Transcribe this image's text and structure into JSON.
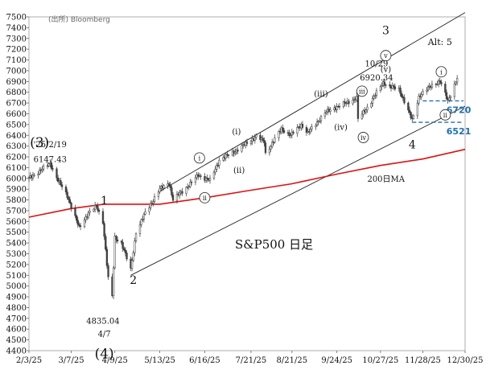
{
  "source": "(出所) Bloomberg",
  "chart_data": {
    "type": "candlestick",
    "title": "S&P500 日足",
    "ylim": [
      4400,
      7500
    ],
    "y_ticks": [
      4400,
      4500,
      4600,
      4700,
      4800,
      4900,
      5000,
      5100,
      5200,
      5300,
      5400,
      5500,
      5600,
      5700,
      5800,
      5900,
      6000,
      6100,
      6200,
      6300,
      6400,
      6500,
      6600,
      6700,
      6800,
      6900,
      7000,
      7100,
      7200,
      7300,
      7400,
      7500
    ],
    "x_ticks": [
      "2/3/25",
      "3/7/25",
      "4/9/25",
      "5/13/25",
      "6/16/25",
      "7/21/25",
      "8/21/25",
      "9/24/25",
      "10/27/25",
      "11/28/25",
      "12/30/25"
    ],
    "x_tick_dates": [
      "2025-02-03",
      "2025-03-07",
      "2025-04-09",
      "2025-05-13",
      "2025-06-16",
      "2025-07-21",
      "2025-08-21",
      "2025-09-24",
      "2025-10-27",
      "2025-11-28",
      "2025-12-30"
    ],
    "price_anchors": [
      [
        "2025-02-03",
        6000
      ],
      [
        "2025-02-10",
        6060
      ],
      [
        "2025-02-19",
        6140
      ],
      [
        "2025-02-25",
        5980
      ],
      [
        "2025-03-04",
        5840
      ],
      [
        "2025-03-10",
        5640
      ],
      [
        "2025-03-13",
        5540
      ],
      [
        "2025-03-20",
        5680
      ],
      [
        "2025-03-26",
        5740
      ],
      [
        "2025-03-31",
        5600
      ],
      [
        "2025-04-04",
        5070
      ],
      [
        "2025-04-07",
        4900
      ],
      [
        "2025-04-09",
        5450
      ],
      [
        "2025-04-14",
        5400
      ],
      [
        "2025-04-21",
        5150
      ],
      [
        "2025-04-25",
        5500
      ],
      [
        "2025-05-02",
        5680
      ],
      [
        "2025-05-13",
        5900
      ],
      [
        "2025-05-20",
        5960
      ],
      [
        "2025-05-23",
        5800
      ],
      [
        "2025-06-05",
        5950
      ],
      [
        "2025-06-11",
        6030
      ],
      [
        "2025-06-20",
        5980
      ],
      [
        "2025-06-27",
        6170
      ],
      [
        "2025-07-10",
        6260
      ],
      [
        "2025-07-25",
        6390
      ],
      [
        "2025-07-31",
        6340
      ],
      [
        "2025-08-01",
        6230
      ],
      [
        "2025-08-13",
        6460
      ],
      [
        "2025-08-20",
        6400
      ],
      [
        "2025-08-28",
        6500
      ],
      [
        "2025-09-02",
        6420
      ],
      [
        "2025-09-15",
        6610
      ],
      [
        "2025-09-23",
        6660
      ],
      [
        "2025-10-01",
        6700
      ],
      [
        "2025-10-09",
        6750
      ],
      [
        "2025-10-10",
        6550
      ],
      [
        "2025-10-17",
        6660
      ],
      [
        "2025-10-29",
        6890
      ],
      [
        "2025-11-03",
        6850
      ],
      [
        "2025-11-10",
        6830
      ],
      [
        "2025-11-20",
        6540
      ],
      [
        "2025-11-25",
        6760
      ],
      [
        "2025-12-05",
        6870
      ],
      [
        "2025-12-11",
        6900
      ],
      [
        "2025-12-17",
        6720
      ],
      [
        "2025-12-24",
        6930
      ]
    ],
    "ma_label": "200日MA",
    "ma_anchors": [
      [
        "2025-02-03",
        5640
      ],
      [
        "2025-03-07",
        5720
      ],
      [
        "2025-04-01",
        5760
      ],
      [
        "2025-04-09",
        5760
      ],
      [
        "2025-05-13",
        5760
      ],
      [
        "2025-06-16",
        5820
      ],
      [
        "2025-07-21",
        5890
      ],
      [
        "2025-08-21",
        5950
      ],
      [
        "2025-09-24",
        6040
      ],
      [
        "2025-10-27",
        6120
      ],
      [
        "2025-11-28",
        6180
      ],
      [
        "2025-12-30",
        6270
      ]
    ],
    "channel_upper": [
      [
        "2025-05-13",
        5880
      ],
      [
        "2025-12-30",
        7540
      ]
    ],
    "channel_lower": [
      [
        "2025-04-21",
        5100
      ],
      [
        "2025-12-30",
        6670
      ]
    ],
    "level_lines": [
      {
        "value": 6720,
        "label": "6720",
        "from": "2025-11-28",
        "to": "2025-12-30",
        "color": "#1f6fb4"
      },
      {
        "value": 6521,
        "label": "6521",
        "from": "2025-11-20",
        "to": "2025-12-30",
        "color": "#1f6fb4"
      }
    ],
    "annotations": [
      {
        "text": "(3)",
        "date": "2025-02-11",
        "y": 6290,
        "size": 17
      },
      {
        "text": "'25/2/19",
        "date": "2025-02-19",
        "y": 6290,
        "size": 10
      },
      {
        "text": "6147.43",
        "date": "2025-02-19",
        "y": 6150,
        "size": 10
      },
      {
        "text": "1",
        "date": "2025-04-01",
        "y": 5760,
        "size": 14
      },
      {
        "text": "2",
        "date": "2025-04-23",
        "y": 5020,
        "size": 14
      },
      {
        "text": "4835.04",
        "date": "2025-03-31",
        "y": 4650,
        "size": 10
      },
      {
        "text": "4/7",
        "date": "2025-04-01",
        "y": 4530,
        "size": 10
      },
      {
        "text": "(4)",
        "date": "2025-04-01",
        "y": 4330,
        "size": 17
      },
      {
        "text": "(i)",
        "date": "2025-07-10",
        "y": 6410,
        "size": 10
      },
      {
        "text": "(ii)",
        "date": "2025-07-12",
        "y": 6050,
        "size": 10
      },
      {
        "text": "(iii)",
        "date": "2025-09-12",
        "y": 6760,
        "size": 10
      },
      {
        "text": "(iv)",
        "date": "2025-09-27",
        "y": 6450,
        "size": 10
      },
      {
        "text": "3",
        "date": "2025-10-31",
        "y": 7340,
        "size": 14
      },
      {
        "text": "10/29",
        "date": "2025-10-24",
        "y": 7040,
        "size": 10
      },
      {
        "text": "6920.34",
        "date": "2025-10-24",
        "y": 6910,
        "size": 10
      },
      {
        "text": "(v)",
        "date": "2025-10-31",
        "y": 6990,
        "size": 10
      },
      {
        "text": "4",
        "date": "2025-11-20",
        "y": 6280,
        "size": 14
      },
      {
        "text": "Alt: 5",
        "date": "2025-12-11",
        "y": 7240,
        "size": 11
      }
    ],
    "circle_labels": [
      {
        "text": "i",
        "date": "2025-06-12",
        "y": 6190
      },
      {
        "text": "ii",
        "date": "2025-06-16",
        "y": 5820
      },
      {
        "text": "iii",
        "date": "2025-10-13",
        "y": 6810
      },
      {
        "text": "iv",
        "date": "2025-10-14",
        "y": 6380
      },
      {
        "text": "v",
        "date": "2025-10-31",
        "y": 7140
      },
      {
        "text": "i",
        "date": "2025-12-12",
        "y": 6990
      },
      {
        "text": "ii",
        "date": "2025-12-15",
        "y": 6590
      }
    ]
  }
}
